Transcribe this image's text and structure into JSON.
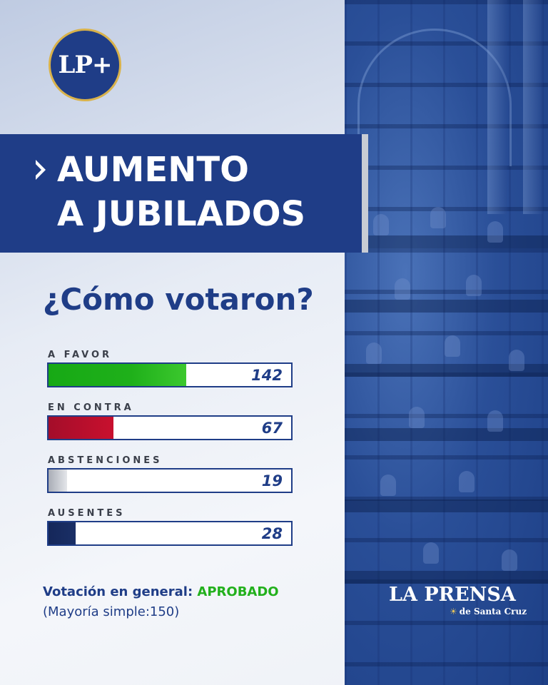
{
  "logo": {
    "text": "LP+"
  },
  "banner": {
    "title_line1": "AUMENTO",
    "title_line2": "A JUBILADOS"
  },
  "question": "¿Cómo votaron?",
  "chart_data": {
    "type": "bar",
    "orientation": "horizontal",
    "title": "¿Cómo votaron?",
    "categories": [
      "A FAVOR",
      "EN CONTRA",
      "ABSTENCIONES",
      "AUSENTES"
    ],
    "values": [
      142,
      67,
      19,
      28
    ],
    "colors": [
      "#1fb01a",
      "#c8102e",
      "#b8bcc4",
      "#1a2f66"
    ],
    "xlim": [
      0,
      250
    ],
    "grid": false,
    "legend": "none"
  },
  "summary": {
    "label": "Votación en general: ",
    "result": "APROBADO",
    "majority": "(Mayoría simple:150)"
  },
  "brand": {
    "name": "LA PRENSA",
    "subtitle": "de Santa Cruz"
  },
  "colors": {
    "primary": "#1f3d87",
    "approved": "#22b01c"
  }
}
